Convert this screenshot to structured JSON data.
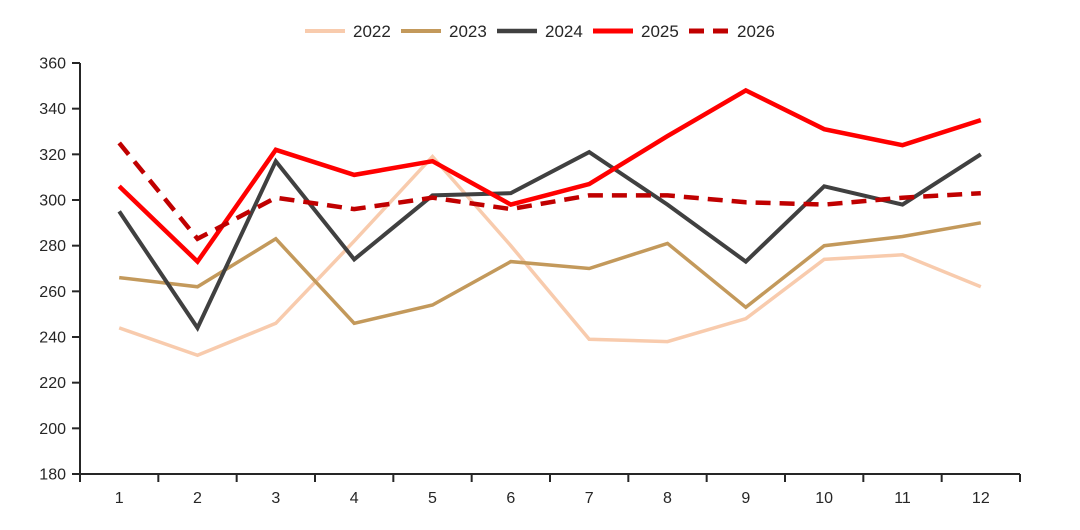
{
  "chart_data": {
    "type": "line",
    "title": "",
    "xlabel": "",
    "ylabel": "",
    "categories": [
      "1",
      "2",
      "3",
      "4",
      "5",
      "6",
      "7",
      "8",
      "9",
      "10",
      "11",
      "12"
    ],
    "series": [
      {
        "name": "2022",
        "color": "#F8CBAD",
        "style": "solid",
        "width": 3.5,
        "values": [
          244,
          232,
          246,
          282,
          319,
          280,
          239,
          238,
          248,
          274,
          276,
          262
        ]
      },
      {
        "name": "2023",
        "color": "#C3995B",
        "style": "solid",
        "width": 3.5,
        "values": [
          266,
          262,
          283,
          246,
          254,
          273,
          270,
          281,
          253,
          280,
          284,
          290
        ]
      },
      {
        "name": "2024",
        "color": "#404040",
        "style": "solid",
        "width": 4,
        "values": [
          295,
          244,
          317,
          274,
          302,
          303,
          321,
          298,
          273,
          306,
          298,
          320
        ]
      },
      {
        "name": "2025",
        "color": "#FF0000",
        "style": "solid",
        "width": 4.5,
        "values": [
          306,
          273,
          322,
          311,
          317,
          298,
          307,
          328,
          348,
          331,
          324,
          335
        ]
      },
      {
        "name": "2026",
        "color": "#C00000",
        "style": "dashed",
        "width": 4.5,
        "values": [
          325,
          283,
          301,
          296,
          301,
          296,
          302,
          302,
          299,
          298,
          301,
          303
        ]
      }
    ],
    "ylim": [
      180,
      360
    ],
    "ytick_step": 20,
    "y_tick_labels": [
      "180",
      "200",
      "220",
      "240",
      "260",
      "280",
      "300",
      "320",
      "340",
      "360"
    ],
    "legend_entries": [
      "2022",
      "2023",
      "2024",
      "2025",
      "2026"
    ],
    "legend_position": "top-center",
    "grid": false,
    "axis_color": "#262626",
    "text_color": "#262626",
    "background_color": "#FFFFFF"
  }
}
